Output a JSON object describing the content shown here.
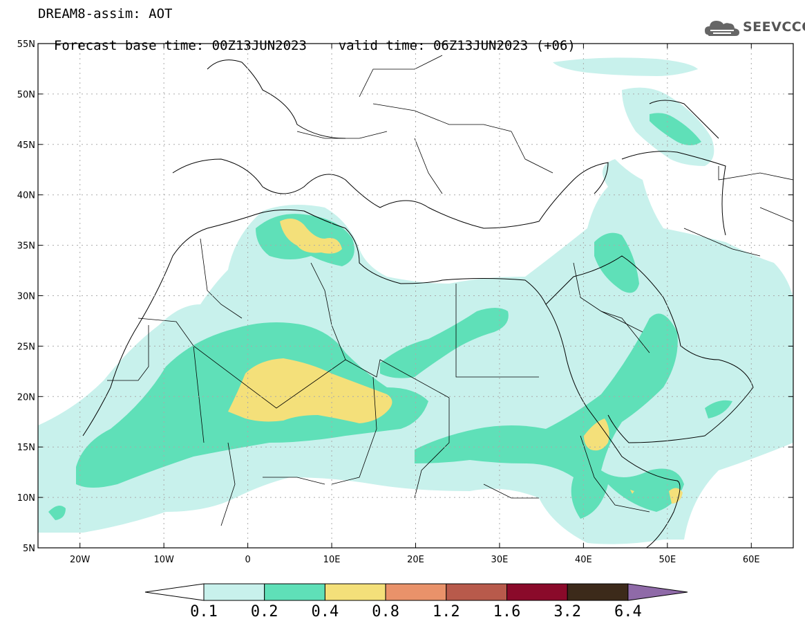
{
  "header": {
    "title": "DREAM8-assim: AOT",
    "base_time": "Forecast base time: 00Z13JUN2023",
    "valid_time": "valid time: 06Z13JUN2023 (+06)"
  },
  "logo": {
    "text": "SEEVCCC",
    "icon": "cloud-icon"
  },
  "map": {
    "lon_range": [
      -25,
      65
    ],
    "lat_range": [
      5,
      55
    ],
    "lat_ticks": [
      "55N",
      "50N",
      "45N",
      "40N",
      "35N",
      "30N",
      "25N",
      "20N",
      "15N",
      "10N",
      "5N"
    ],
    "lon_ticks": [
      "20W",
      "10W",
      "0",
      "10E",
      "20E",
      "30E",
      "40E",
      "50E",
      "60E"
    ]
  },
  "colorbar": {
    "labels": [
      "0.1",
      "0.2",
      "0.4",
      "0.8",
      "1.2",
      "1.6",
      "3.2",
      "6.4"
    ],
    "colors": [
      "#c8f1ec",
      "#5fe0b8",
      "#f4e07a",
      "#e9926a",
      "#b85a4b",
      "#8a0a2a",
      "#3c2a1a",
      "#8f6aa8"
    ]
  },
  "dust_colors": {
    "low": "#c8f1ec",
    "mid": "#5fe0b8",
    "high": "#f4e07a"
  }
}
